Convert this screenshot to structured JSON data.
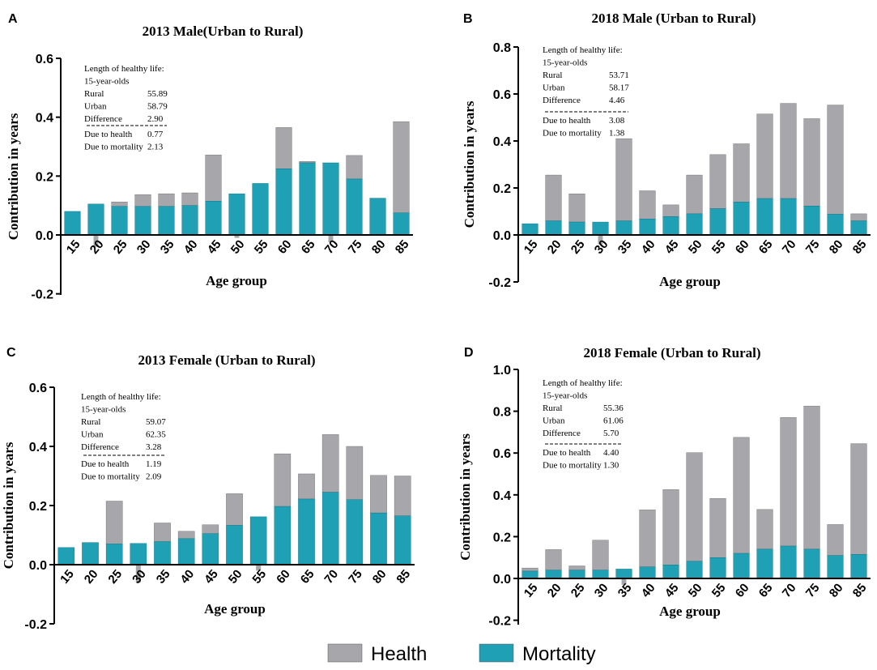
{
  "colors": {
    "health": "#a7a6ab",
    "mortality": "#1fa0b5",
    "axis": "#000000"
  },
  "legend": [
    {
      "key": "health",
      "label": "Health"
    },
    {
      "key": "mortality",
      "label": "Mortality"
    }
  ],
  "chart_data": [
    {
      "type": "bar",
      "stacked": true,
      "panel": "A",
      "title": "2013 Male(Urban to Rural)",
      "xlabel": "Age group",
      "ylabel": "Contribution in years",
      "ylim": [
        -0.2,
        0.6
      ],
      "yticks": [
        "-0.2",
        "0.0",
        "0.2",
        "0.4",
        "0.6"
      ],
      "categories": [
        "15",
        "20",
        "25",
        "30",
        "35",
        "40",
        "45",
        "50",
        "55",
        "60",
        "65",
        "70",
        "75",
        "80",
        "85"
      ],
      "series": [
        {
          "name": "Mortality",
          "values": [
            0.08,
            0.105,
            0.097,
            0.097,
            0.097,
            0.1,
            0.115,
            0.14,
            0.175,
            0.225,
            0.245,
            0.245,
            0.19,
            0.125,
            0.075
          ]
        },
        {
          "name": "Health",
          "values": [
            0.0,
            -0.04,
            0.015,
            0.04,
            0.043,
            0.043,
            0.157,
            -0.01,
            0.0,
            0.14,
            0.005,
            -0.025,
            0.08,
            0.0,
            0.31
          ]
        }
      ],
      "annotation": {
        "header1": "Length of healthy  life:",
        "header2": "15-year-olds",
        "rows": [
          {
            "label": "Rural",
            "value": "55.89"
          },
          {
            "label": "Urban",
            "value": "58.79"
          },
          {
            "label": "Difference",
            "value": "2.90"
          }
        ],
        "due": [
          {
            "label": "Due to health",
            "value": "0.77"
          },
          {
            "label": "Due to mortality",
            "value": "2.13"
          }
        ]
      }
    },
    {
      "type": "bar",
      "stacked": true,
      "panel": "B",
      "title": "2018 Male (Urban to Rural)",
      "xlabel": "Age group",
      "ylabel": "Contribution in years",
      "ylim": [
        -0.2,
        0.8
      ],
      "yticks": [
        "-0.2",
        "0.0",
        "0.2",
        "0.4",
        "0.6",
        "0.8"
      ],
      "categories": [
        "15",
        "20",
        "25",
        "30",
        "35",
        "40",
        "45",
        "50",
        "55",
        "60",
        "65",
        "70",
        "75",
        "80",
        "85"
      ],
      "series": [
        {
          "name": "Mortality",
          "values": [
            0.048,
            0.06,
            0.055,
            0.055,
            0.06,
            0.068,
            0.078,
            0.09,
            0.112,
            0.14,
            0.155,
            0.155,
            0.123,
            0.088,
            0.06
          ]
        },
        {
          "name": "Health",
          "values": [
            0.0,
            0.195,
            0.12,
            -0.04,
            0.35,
            0.12,
            0.05,
            0.165,
            0.23,
            0.248,
            0.36,
            0.405,
            0.372,
            0.465,
            0.03
          ]
        }
      ],
      "annotation": {
        "header1": "Length of healthy  life:",
        "header2": "15-year-olds",
        "rows": [
          {
            "label": "Rural",
            "value": "53.71"
          },
          {
            "label": "Urban",
            "value": "58.17"
          },
          {
            "label": "Difference",
            "value": "4.46"
          }
        ],
        "due": [
          {
            "label": "Due to health",
            "value": "3.08"
          },
          {
            "label": "Due to mortality",
            "value": "1.38"
          }
        ]
      }
    },
    {
      "type": "bar",
      "stacked": true,
      "panel": "C",
      "title": "2013 Female (Urban to Rural)",
      "xlabel": "Age group",
      "ylabel": "Contribution in years",
      "ylim": [
        -0.2,
        0.6
      ],
      "yticks": [
        "-0.2",
        "0.0",
        "0.2",
        "0.4",
        "0.6"
      ],
      "categories": [
        "15",
        "20",
        "25",
        "30",
        "35",
        "40",
        "45",
        "50",
        "55",
        "60",
        "65",
        "70",
        "75",
        "80",
        "85"
      ],
      "series": [
        {
          "name": "Mortality",
          "values": [
            0.058,
            0.075,
            0.07,
            0.072,
            0.078,
            0.088,
            0.105,
            0.133,
            0.162,
            0.197,
            0.222,
            0.245,
            0.22,
            0.175,
            0.165
          ]
        },
        {
          "name": "Health",
          "values": [
            0.0,
            0.0,
            0.145,
            -0.06,
            0.063,
            0.025,
            0.03,
            0.107,
            -0.02,
            0.178,
            0.085,
            0.195,
            0.18,
            0.127,
            0.135
          ]
        }
      ],
      "annotation": {
        "header1": "Length of healthy  life:",
        "header2": "15-year-olds",
        "rows": [
          {
            "label": "Rural",
            "value": "59.07"
          },
          {
            "label": "Urban",
            "value": "62.35"
          },
          {
            "label": "Difference",
            "value": "3.28"
          }
        ],
        "due": [
          {
            "label": "Due to health",
            "value": "1.19"
          },
          {
            "label": "Due to mortality",
            "value": "2.09"
          }
        ]
      }
    },
    {
      "type": "bar",
      "stacked": true,
      "panel": "D",
      "title": "2018 Female (Urban to Rural)",
      "xlabel": "Age group",
      "ylabel": "Contribution in years",
      "ylim": [
        -0.2,
        1.0
      ],
      "yticks": [
        "-0.2",
        "0.0",
        "0.2",
        "0.4",
        "0.6",
        "0.8",
        "1.0"
      ],
      "categories": [
        "15",
        "20",
        "25",
        "30",
        "35",
        "40",
        "45",
        "50",
        "55",
        "60",
        "65",
        "70",
        "75",
        "80",
        "85"
      ],
      "series": [
        {
          "name": "Mortality",
          "values": [
            0.035,
            0.04,
            0.04,
            0.04,
            0.045,
            0.055,
            0.065,
            0.082,
            0.1,
            0.12,
            0.14,
            0.155,
            0.14,
            0.11,
            0.115
          ]
        },
        {
          "name": "Health",
          "values": [
            0.015,
            0.098,
            0.02,
            0.143,
            -0.03,
            0.273,
            0.36,
            0.52,
            0.283,
            0.555,
            0.19,
            0.615,
            0.685,
            0.148,
            0.53
          ]
        }
      ],
      "annotation": {
        "header1": "Length of healthy  life:",
        "header2": "15-year-olds",
        "rows": [
          {
            "label": "Rural",
            "value": "55.36"
          },
          {
            "label": "Urban",
            "value": "61.06"
          },
          {
            "label": "Difference",
            "value": "5.70"
          }
        ],
        "due": [
          {
            "label": "Due to health",
            "value": "4.40"
          },
          {
            "label": "Due to mortality",
            "value": "1.30"
          }
        ]
      }
    }
  ]
}
